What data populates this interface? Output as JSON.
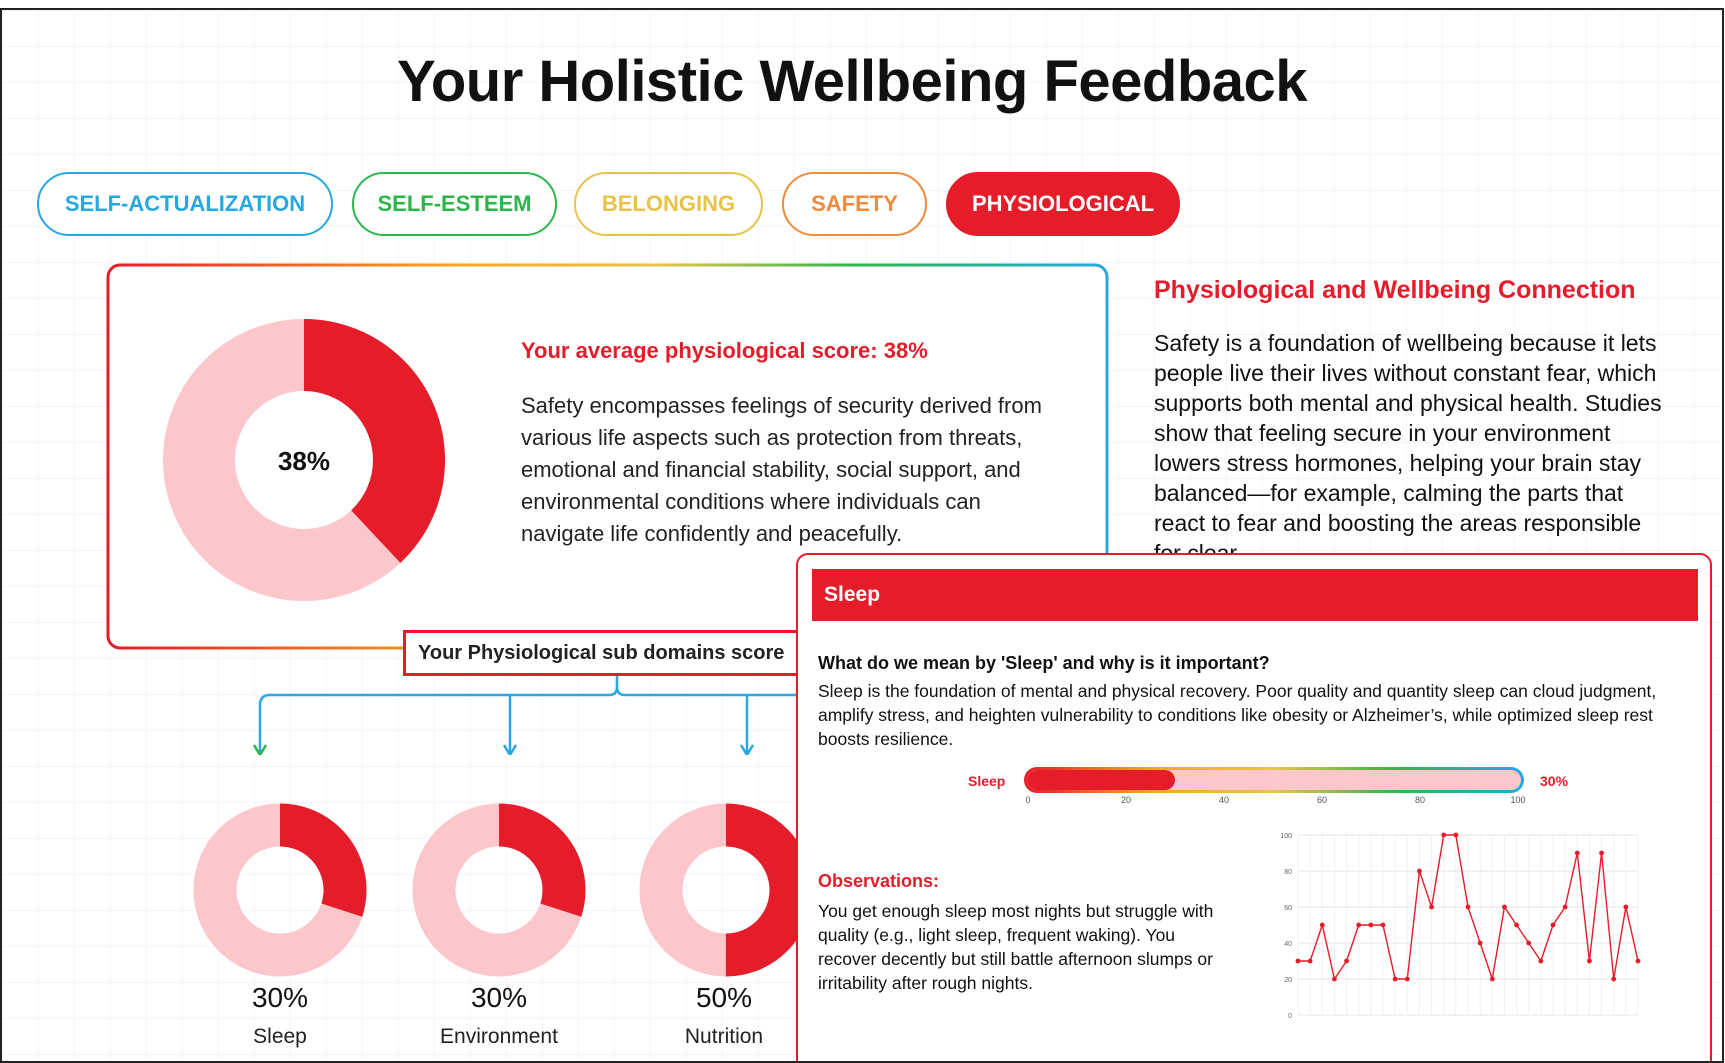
{
  "page": {
    "title": "Your Holistic Wellbeing Feedback"
  },
  "tabs": [
    {
      "label": "SELF-ACTUALIZATION",
      "color": "#27a8e0",
      "active": false
    },
    {
      "label": "SELF-ESTEEM",
      "color": "#2db54b",
      "active": false
    },
    {
      "label": "BELONGING",
      "color": "#e8c34a",
      "active": false
    },
    {
      "label": "SAFETY",
      "color": "#f08a3c",
      "active": false
    },
    {
      "label": "PHYSIOLOGICAL",
      "color": "#e51c2a",
      "active": true
    }
  ],
  "main_card": {
    "donut_label": "38%",
    "donut_value": 0.38,
    "score_title": "Your average physiological score: 38%",
    "description": "Safety encompasses feelings of security derived from various life aspects such as protection from threats, emotional and financial stability, social support, and environmental conditions where individuals can navigate life confidently and peacefully."
  },
  "right_panel": {
    "title": "Physiological and Wellbeing Connection",
    "description": "Safety is a foundation of wellbeing because it lets people live their lives without constant fear, which supports both mental and physical health. Studies show that feeling secure in your environment lowers stress hormones, helping your brain stay balanced—for example, calming the parts that react to fear and boosting the areas responsible for clear"
  },
  "subdomains": {
    "heading": "Your Physiological sub domains score",
    "items": [
      {
        "name": "Sleep",
        "pct_label": "30%",
        "value": 0.3
      },
      {
        "name": "Environment",
        "pct_label": "30%",
        "value": 0.3
      },
      {
        "name": "Nutrition",
        "pct_label": "50%",
        "value": 0.5
      }
    ]
  },
  "modal": {
    "header": "Sleep",
    "question": "What do we mean by 'Sleep' and why is it important?",
    "description": "Sleep is the foundation of mental and physical recovery. Poor quality and quantity sleep can cloud judgment, amplify stress, and heighten vulnerability to conditions like obesity or Alzheimer’s, while optimized sleep rest boosts resilience.",
    "bar_label": "Sleep",
    "bar_pct_label": "30%",
    "bar_value": 30,
    "bar_ticks": [
      "0",
      "20",
      "40",
      "60",
      "80",
      "100"
    ],
    "observations_title": "Observations:",
    "observations": "You get enough sleep most nights but struggle with quality (e.g., light sleep, frequent waking). You recover decently but still battle afternoon slumps or irritability after rough nights."
  },
  "colors": {
    "accent": "#e51c2a",
    "accent_light": "#fcc7cb",
    "connector": "#27a8e0"
  },
  "chart_data": {
    "type": "line",
    "title": "",
    "xlabel": "",
    "ylabel": "",
    "ylim": [
      0,
      100
    ],
    "yticks": [
      "0",
      "20",
      "40",
      "60",
      "80",
      "100"
    ],
    "grid": true,
    "series": [
      {
        "values": [
          30,
          30,
          50,
          20,
          30,
          50,
          50,
          50,
          20,
          20,
          80,
          60,
          100,
          100,
          60,
          40,
          20,
          60,
          50,
          40,
          30,
          50,
          60,
          90,
          30,
          90,
          20,
          60,
          30
        ]
      }
    ]
  }
}
